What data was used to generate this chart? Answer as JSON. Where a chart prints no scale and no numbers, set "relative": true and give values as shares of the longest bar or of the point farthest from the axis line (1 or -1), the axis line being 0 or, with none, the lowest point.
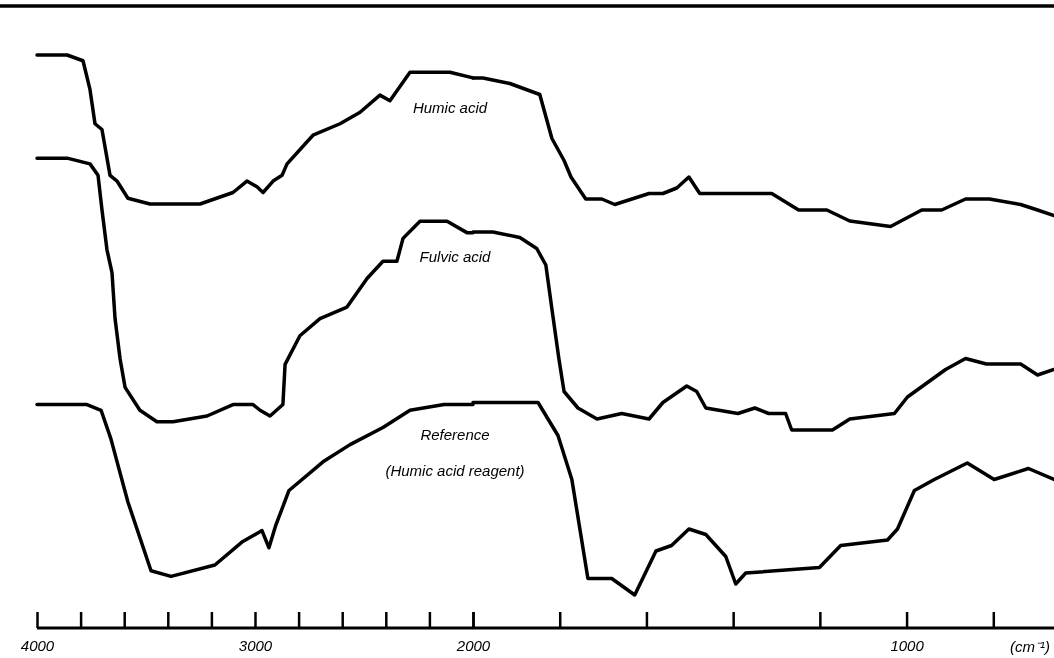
{
  "chart_data": [
    {
      "type": "line",
      "relative": true,
      "xlim": [
        4000,
        2000
      ],
      "xticks": [
        4000,
        {
          "value": 3800,
          "label": null
        },
        {
          "value": 3600,
          "label": null
        },
        {
          "value": 3400,
          "label": null
        },
        {
          "value": 3200,
          "label": null
        },
        3000,
        {
          "value": 2800,
          "label": null
        },
        {
          "value": 2600,
          "label": null
        },
        {
          "value": 2400,
          "label": null
        },
        {
          "value": 2200,
          "label": null
        },
        {
          "value": 2000,
          "label": null
        }
      ],
      "series": [
        {
          "name": "Humic acid",
          "color": "#000000",
          "x": [
            4000,
            3862,
            3789,
            3757,
            3734,
            3702,
            3665,
            3633,
            3583,
            3482,
            3376,
            3252,
            3101,
            3037,
            2991,
            2963,
            2917,
            2876,
            2853,
            2734,
            2610,
            2518,
            2427,
            2381,
            2289,
            2106,
            2000
          ],
          "values": [
            1.0,
            1.0,
            0.99,
            0.94,
            0.88,
            0.87,
            0.79,
            0.78,
            0.75,
            0.74,
            0.74,
            0.74,
            0.76,
            0.78,
            0.77,
            0.76,
            0.78,
            0.79,
            0.81,
            0.86,
            0.88,
            0.9,
            0.93,
            0.92,
            0.97,
            0.97,
            0.96
          ]
        },
        {
          "name": "Fulvic acid",
          "color": "#000000",
          "x": [
            4000,
            3862,
            3757,
            3720,
            3702,
            3679,
            3656,
            3642,
            3619,
            3596,
            3528,
            3450,
            3376,
            3220,
            3101,
            3009,
            2977,
            2931,
            2872,
            2862,
            2794,
            2702,
            2578,
            2486,
            2413,
            2349,
            2321,
            2243,
            2119,
            2028,
            2000
          ],
          "values": [
            0.82,
            0.82,
            0.81,
            0.79,
            0.73,
            0.66,
            0.62,
            0.54,
            0.47,
            0.42,
            0.38,
            0.36,
            0.36,
            0.37,
            0.39,
            0.39,
            0.38,
            0.37,
            0.39,
            0.46,
            0.51,
            0.54,
            0.56,
            0.61,
            0.64,
            0.64,
            0.68,
            0.71,
            0.71,
            0.69,
            0.69
          ]
        },
        {
          "name": "Reference (Humic acid reagent)",
          "color": "#000000",
          "x": [
            4000,
            3771,
            3706,
            3661,
            3583,
            3477,
            3385,
            3184,
            3060,
            2968,
            2936,
            2904,
            2844,
            2688,
            2564,
            2413,
            2289,
            2133,
            2000
          ],
          "values": [
            0.39,
            0.39,
            0.38,
            0.33,
            0.22,
            0.1,
            0.09,
            0.11,
            0.15,
            0.17,
            0.14,
            0.18,
            0.24,
            0.29,
            0.32,
            0.35,
            0.38,
            0.39,
            0.39
          ]
        }
      ]
    },
    {
      "type": "line",
      "relative": true,
      "xlabel": "(cm⁻¹)",
      "xlim": [
        2000,
        660
      ],
      "xticks": [
        2000,
        {
          "value": 1800,
          "label": null
        },
        {
          "value": 1600,
          "label": null
        },
        {
          "value": 1400,
          "label": null
        },
        {
          "value": 1200,
          "label": null
        },
        1000,
        {
          "value": 800,
          "label": null
        }
      ],
      "series": [
        {
          "color": "#000000",
          "x": [
            2000,
            1977,
            1915,
            1846,
            1818,
            1790,
            1774,
            1740,
            1703,
            1673,
            1594,
            1562,
            1530,
            1502,
            1477,
            1383,
            1343,
            1311,
            1249,
            1184,
            1131,
            1037,
            965,
            919,
            864,
            809,
            737,
            698,
            660
          ],
          "values": [
            1.0,
            1.0,
            0.99,
            0.97,
            0.89,
            0.85,
            0.82,
            0.78,
            0.78,
            0.77,
            0.79,
            0.79,
            0.8,
            0.82,
            0.79,
            0.79,
            0.79,
            0.79,
            0.76,
            0.76,
            0.74,
            0.73,
            0.76,
            0.76,
            0.78,
            0.78,
            0.77,
            0.76,
            0.75
          ]
        },
        {
          "color": "#000000",
          "x": [
            2000,
            1954,
            1892,
            1853,
            1832,
            1818,
            1802,
            1790,
            1758,
            1714,
            1657,
            1594,
            1562,
            1507,
            1484,
            1463,
            1389,
            1350,
            1318,
            1279,
            1265,
            1224,
            1171,
            1131,
            1028,
            998,
            910,
            864,
            816,
            737,
            698,
            660
          ],
          "values": [
            0.72,
            0.72,
            0.71,
            0.69,
            0.66,
            0.58,
            0.49,
            0.43,
            0.4,
            0.38,
            0.39,
            0.38,
            0.41,
            0.44,
            0.43,
            0.4,
            0.39,
            0.4,
            0.39,
            0.39,
            0.36,
            0.36,
            0.36,
            0.38,
            0.39,
            0.42,
            0.47,
            0.49,
            0.48,
            0.48,
            0.46,
            0.47
          ]
        },
        {
          "color": "#000000",
          "x": [
            2000,
            1912,
            1850,
            1804,
            1772,
            1735,
            1680,
            1627,
            1578,
            1542,
            1502,
            1463,
            1417,
            1394,
            1371,
            1201,
            1152,
            1044,
            1021,
            982,
            936,
            860,
            798,
            719,
            660
          ],
          "values": [
            0.41,
            0.41,
            0.41,
            0.35,
            0.27,
            0.09,
            0.09,
            0.06,
            0.14,
            0.15,
            0.18,
            0.17,
            0.13,
            0.08,
            0.1,
            0.11,
            0.15,
            0.16,
            0.18,
            0.25,
            0.27,
            0.3,
            0.27,
            0.29,
            0.27
          ]
        }
      ]
    }
  ]
}
